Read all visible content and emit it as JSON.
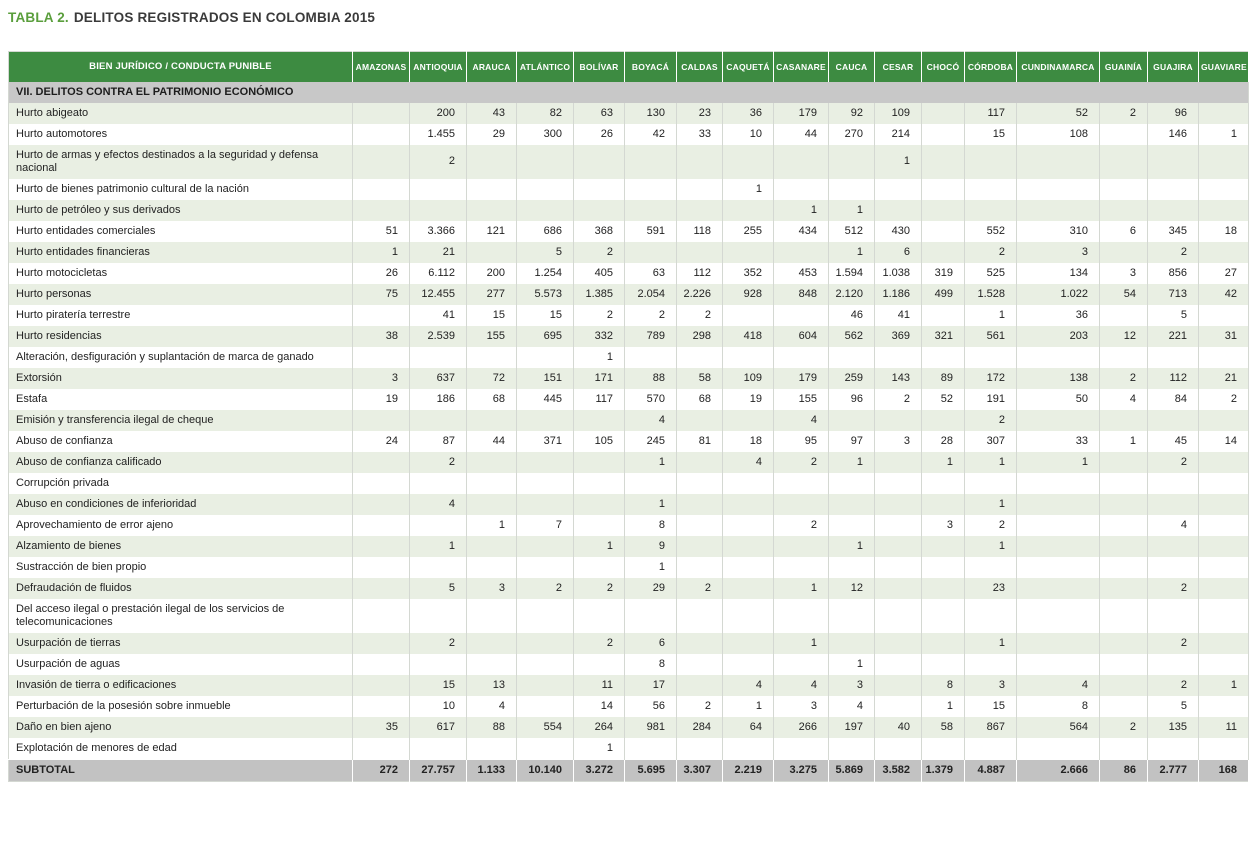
{
  "page": {
    "title_prefix": "TABLA 2.",
    "title_text": "DELITOS REGISTRADOS EN COLOMBIA 2015"
  },
  "colors": {
    "header_green": "#3d8b41",
    "title_green": "#5a9e3c",
    "row_tint": "#e9efe3",
    "section_gray": "#c8c8c8",
    "subtotal_gray": "#c2c2c2"
  },
  "table": {
    "first_col_header": "BIEN JURÍDICO / CONDUCTA PUNIBLE",
    "columns": [
      "AMAZONAS",
      "ANTIOQUIA",
      "ARAUCA",
      "ATLÁNTICO",
      "BOLÍVAR",
      "BOYACÁ",
      "CALDAS",
      "CAQUETÁ",
      "CASANARE",
      "CAUCA",
      "CESAR",
      "CHOCÓ",
      "CÓRDOBA",
      "CUNDINAMARCA",
      "GUAINÍA",
      "GUAJIRA",
      "GUAVIARE"
    ],
    "section": "VII. DELITOS CONTRA EL PATRIMONIO ECONÓMICO",
    "rows": [
      {
        "label": "Hurto abigeato",
        "values": [
          "",
          "200",
          "43",
          "82",
          "63",
          "130",
          "23",
          "36",
          "179",
          "92",
          "109",
          "",
          "117",
          "52",
          "2",
          "96",
          ""
        ]
      },
      {
        "label": "Hurto automotores",
        "values": [
          "",
          "1.455",
          "29",
          "300",
          "26",
          "42",
          "33",
          "10",
          "44",
          "270",
          "214",
          "",
          "15",
          "108",
          "",
          "146",
          "1"
        ]
      },
      {
        "label": "Hurto de armas y efectos destinados a la seguridad y defensa nacional",
        "values": [
          "",
          "2",
          "",
          "",
          "",
          "",
          "",
          "",
          "",
          "",
          "1",
          "",
          "",
          "",
          "",
          "",
          ""
        ]
      },
      {
        "label": "Hurto de bienes patrimonio cultural de la nación",
        "values": [
          "",
          "",
          "",
          "",
          "",
          "",
          "",
          "1",
          "",
          "",
          "",
          "",
          "",
          "",
          "",
          "",
          ""
        ]
      },
      {
        "label": "Hurto de petróleo y sus derivados",
        "values": [
          "",
          "",
          "",
          "",
          "",
          "",
          "",
          "",
          "1",
          "1",
          "",
          "",
          "",
          "",
          "",
          "",
          ""
        ]
      },
      {
        "label": "Hurto entidades comerciales",
        "values": [
          "51",
          "3.366",
          "121",
          "686",
          "368",
          "591",
          "118",
          "255",
          "434",
          "512",
          "430",
          "",
          "552",
          "310",
          "6",
          "345",
          "18"
        ]
      },
      {
        "label": "Hurto entidades financieras",
        "values": [
          "1",
          "21",
          "",
          "5",
          "2",
          "",
          "",
          "",
          "",
          "1",
          "6",
          "",
          "2",
          "3",
          "",
          "2",
          ""
        ]
      },
      {
        "label": "Hurto motocicletas",
        "values": [
          "26",
          "6.112",
          "200",
          "1.254",
          "405",
          "63",
          "112",
          "352",
          "453",
          "1.594",
          "1.038",
          "319",
          "525",
          "134",
          "3",
          "856",
          "27"
        ]
      },
      {
        "label": "Hurto personas",
        "values": [
          "75",
          "12.455",
          "277",
          "5.573",
          "1.385",
          "2.054",
          "2.226",
          "928",
          "848",
          "2.120",
          "1.186",
          "499",
          "1.528",
          "1.022",
          "54",
          "713",
          "42"
        ]
      },
      {
        "label": "Hurto piratería terrestre",
        "values": [
          "",
          "41",
          "15",
          "15",
          "2",
          "2",
          "2",
          "",
          "",
          "46",
          "41",
          "",
          "1",
          "36",
          "",
          "5",
          ""
        ]
      },
      {
        "label": "Hurto residencias",
        "values": [
          "38",
          "2.539",
          "155",
          "695",
          "332",
          "789",
          "298",
          "418",
          "604",
          "562",
          "369",
          "321",
          "561",
          "203",
          "12",
          "221",
          "31"
        ]
      },
      {
        "label": "Alteración, desfiguración y suplantación de marca de ganado",
        "values": [
          "",
          "",
          "",
          "",
          "1",
          "",
          "",
          "",
          "",
          "",
          "",
          "",
          "",
          "",
          "",
          "",
          ""
        ]
      },
      {
        "label": "Extorsión",
        "values": [
          "3",
          "637",
          "72",
          "151",
          "171",
          "88",
          "58",
          "109",
          "179",
          "259",
          "143",
          "89",
          "172",
          "138",
          "2",
          "112",
          "21"
        ]
      },
      {
        "label": "Estafa",
        "values": [
          "19",
          "186",
          "68",
          "445",
          "117",
          "570",
          "68",
          "19",
          "155",
          "96",
          "2",
          "52",
          "191",
          "50",
          "4",
          "84",
          "2"
        ]
      },
      {
        "label": "Emisión y transferencia ilegal de cheque",
        "values": [
          "",
          "",
          "",
          "",
          "",
          "4",
          "",
          "",
          "4",
          "",
          "",
          "",
          "2",
          "",
          "",
          "",
          ""
        ]
      },
      {
        "label": "Abuso de confianza",
        "values": [
          "24",
          "87",
          "44",
          "371",
          "105",
          "245",
          "81",
          "18",
          "95",
          "97",
          "3",
          "28",
          "307",
          "33",
          "1",
          "45",
          "14"
        ]
      },
      {
        "label": "Abuso de confianza calificado",
        "values": [
          "",
          "2",
          "",
          "",
          "",
          "1",
          "",
          "4",
          "2",
          "1",
          "",
          "1",
          "1",
          "1",
          "",
          "2",
          ""
        ]
      },
      {
        "label": "Corrupción privada",
        "values": [
          "",
          "",
          "",
          "",
          "",
          "",
          "",
          "",
          "",
          "",
          "",
          "",
          "",
          "",
          "",
          "",
          ""
        ]
      },
      {
        "label": "Abuso en condiciones de inferioridad",
        "values": [
          "",
          "4",
          "",
          "",
          "",
          "1",
          "",
          "",
          "",
          "",
          "",
          "",
          "1",
          "",
          "",
          "",
          ""
        ]
      },
      {
        "label": "Aprovechamiento de error ajeno",
        "values": [
          "",
          "",
          "1",
          "7",
          "",
          "8",
          "",
          "",
          "2",
          "",
          "",
          "3",
          "2",
          "",
          "",
          "4",
          ""
        ]
      },
      {
        "label": "Alzamiento de bienes",
        "values": [
          "",
          "1",
          "",
          "",
          "1",
          "9",
          "",
          "",
          "",
          "1",
          "",
          "",
          "1",
          "",
          "",
          "",
          ""
        ]
      },
      {
        "label": "Sustracción de bien propio",
        "values": [
          "",
          "",
          "",
          "",
          "",
          "1",
          "",
          "",
          "",
          "",
          "",
          "",
          "",
          "",
          "",
          "",
          ""
        ]
      },
      {
        "label": "Defraudación de fluidos",
        "values": [
          "",
          "5",
          "3",
          "2",
          "2",
          "29",
          "2",
          "",
          "1",
          "12",
          "",
          "",
          "23",
          "",
          "",
          "2",
          ""
        ]
      },
      {
        "label": "Del acceso ilegal o prestación ilegal de los servicios de telecomunicaciones",
        "values": [
          "",
          "",
          "",
          "",
          "",
          "",
          "",
          "",
          "",
          "",
          "",
          "",
          "",
          "",
          "",
          "",
          ""
        ]
      },
      {
        "label": "Usurpación de tierras",
        "values": [
          "",
          "2",
          "",
          "",
          "2",
          "6",
          "",
          "",
          "1",
          "",
          "",
          "",
          "1",
          "",
          "",
          "2",
          ""
        ]
      },
      {
        "label": "Usurpación de aguas",
        "values": [
          "",
          "",
          "",
          "",
          "",
          "8",
          "",
          "",
          "",
          "1",
          "",
          "",
          "",
          "",
          "",
          "",
          ""
        ]
      },
      {
        "label": "Invasión de tierra o edificaciones",
        "values": [
          "",
          "15",
          "13",
          "",
          "11",
          "17",
          "",
          "4",
          "4",
          "3",
          "",
          "8",
          "3",
          "4",
          "",
          "2",
          "1"
        ]
      },
      {
        "label": "Perturbación de la posesión sobre inmueble",
        "values": [
          "",
          "10",
          "4",
          "",
          "14",
          "56",
          "2",
          "1",
          "3",
          "4",
          "",
          "1",
          "15",
          "8",
          "",
          "5",
          ""
        ]
      },
      {
        "label": "Daño en bien ajeno",
        "values": [
          "35",
          "617",
          "88",
          "554",
          "264",
          "981",
          "284",
          "64",
          "266",
          "197",
          "40",
          "58",
          "867",
          "564",
          "2",
          "135",
          "11"
        ]
      },
      {
        "label": "Explotación de menores de edad",
        "values": [
          "",
          "",
          "",
          "",
          "1",
          "",
          "",
          "",
          "",
          "",
          "",
          "",
          "",
          "",
          "",
          "",
          ""
        ]
      }
    ],
    "subtotal": {
      "label": "SUBTOTAL",
      "values": [
        "272",
        "27.757",
        "1.133",
        "10.140",
        "3.272",
        "5.695",
        "3.307",
        "2.219",
        "3.275",
        "5.869",
        "3.582",
        "1.379",
        "4.887",
        "2.666",
        "86",
        "2.777",
        "168"
      ]
    }
  }
}
